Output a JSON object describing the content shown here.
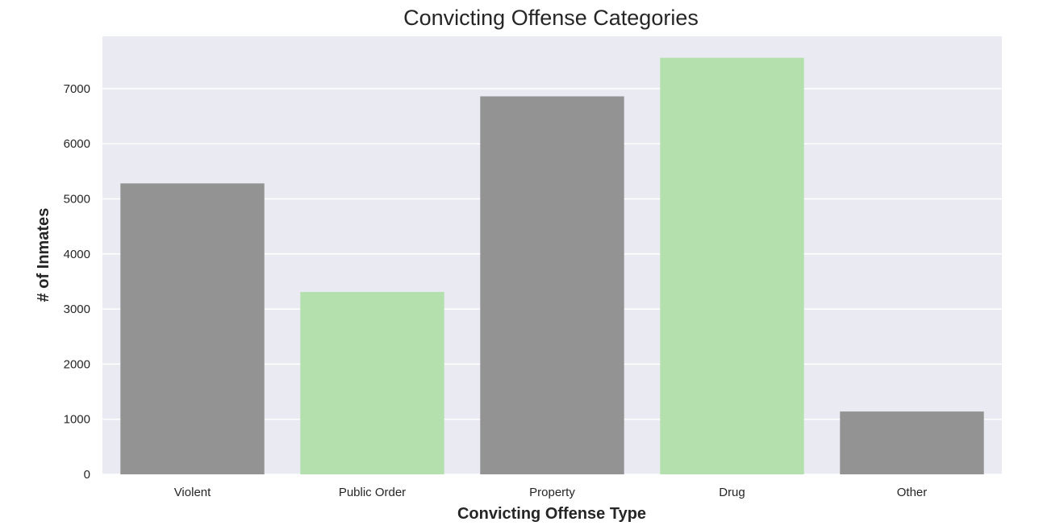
{
  "chart_data": {
    "type": "bar",
    "title": "Convicting Offense Categories",
    "xlabel": "Convicting Offense Type",
    "ylabel": "# of Inmates",
    "categories": [
      "Violent",
      "Public Order",
      "Property",
      "Drug",
      "Other"
    ],
    "values": [
      5280,
      3310,
      6860,
      7560,
      1140
    ],
    "bar_colors": [
      "#939394",
      "#b4e0ad",
      "#939394",
      "#b4e0ad",
      "#939394"
    ],
    "ylim": [
      0,
      7950
    ],
    "yticks": [
      0,
      1000,
      2000,
      3000,
      4000,
      5000,
      6000,
      7000
    ],
    "ytick_labels": [
      "0",
      "1000",
      "2000",
      "3000",
      "4000",
      "5000",
      "6000",
      "7000"
    ],
    "grid": true,
    "background": "#eaeaf2",
    "grid_color": "#ffffff"
  }
}
